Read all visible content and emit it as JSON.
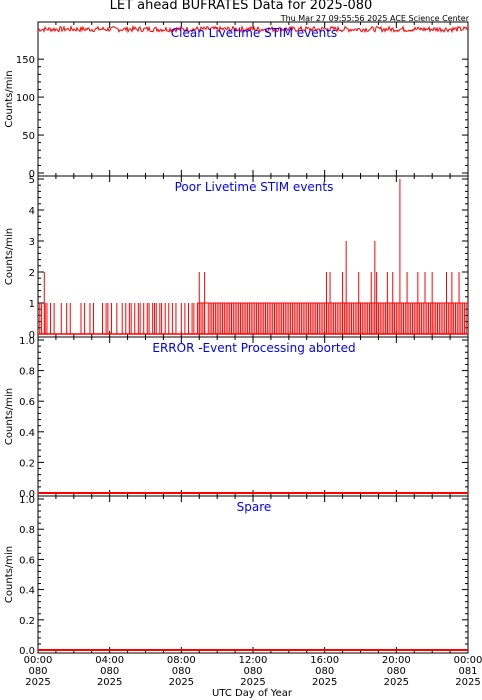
{
  "title": "LET ahead BUFRATES Data for 2025-080",
  "timestamp": "Thu Mar 27 09:55:56 2025 ACE Science Center",
  "xlabel": "UTC Day of Year",
  "colors": {
    "data": "#ff0000",
    "title": "#0000ff",
    "axis": "#000000"
  },
  "x_ticks": [
    {
      "time": "00:00",
      "doy": "080",
      "year": "2025"
    },
    {
      "time": "04:00",
      "doy": "080",
      "year": "2025"
    },
    {
      "time": "08:00",
      "doy": "080",
      "year": "2025"
    },
    {
      "time": "12:00",
      "doy": "080",
      "year": "2025"
    },
    {
      "time": "16:00",
      "doy": "080",
      "year": "2025"
    },
    {
      "time": "20:00",
      "doy": "080",
      "year": "2025"
    },
    {
      "time": "00:00",
      "doy": "081",
      "year": "2025"
    }
  ],
  "chart_data": [
    {
      "type": "line",
      "title": "Clean Livetime STIM events",
      "ylabel": "Counts/min",
      "ylim": [
        0,
        195
      ],
      "yticks": [
        0,
        50,
        100,
        150
      ],
      "ytick_labels": [
        "0",
        "50",
        "100",
        "150"
      ],
      "series": [
        {
          "x_hours": [
            0,
            24
          ],
          "values": [
            190,
            190
          ],
          "noise": [
            186,
            193
          ]
        }
      ]
    },
    {
      "type": "line",
      "title": "Poor Livetime STIM events",
      "ylabel": "Counts/min",
      "ylim": [
        0,
        5
      ],
      "yticks": [
        0,
        1,
        2,
        3,
        4,
        5
      ],
      "ytick_labels": [
        "0",
        "1",
        "2",
        "3",
        "4",
        "5"
      ],
      "series": [
        {
          "spikes_value_1_hours": [
            0.1,
            0.2,
            0.4,
            0.5,
            0.7,
            0.9,
            1.3,
            1.6,
            1.8,
            2.4,
            2.6,
            2.9,
            3.1,
            3.6,
            3.8,
            3.9,
            4.1,
            4.4,
            4.7,
            4.9,
            5.1,
            5.2,
            5.4,
            5.6,
            5.7,
            5.9,
            6.1,
            6.2,
            6.4,
            6.5,
            6.6,
            6.8,
            6.9,
            7.1,
            7.3,
            7.5,
            7.7,
            8.0,
            8.2,
            8.4,
            8.6,
            8.7,
            8.9,
            9.0,
            9.1,
            9.2,
            9.3,
            9.5,
            9.6,
            9.7,
            9.8,
            9.9,
            10.0,
            10.1,
            10.2,
            10.3,
            10.4,
            10.5,
            10.6,
            10.7,
            10.8,
            10.9,
            11.0,
            11.1,
            11.2,
            11.3,
            11.4,
            11.5,
            11.6,
            11.7,
            11.8,
            11.9,
            12.0,
            12.1,
            12.2,
            12.3,
            12.4,
            12.5,
            12.6,
            12.7,
            12.8,
            12.9,
            13.0,
            13.1,
            13.2,
            13.3,
            13.4,
            13.5,
            13.6,
            13.7,
            13.8,
            13.9,
            14.0,
            14.1,
            14.2,
            14.3,
            14.4,
            14.5,
            14.6,
            14.7,
            14.8,
            14.9,
            15.0,
            15.1,
            15.2,
            15.3,
            15.4,
            15.5,
            15.6,
            15.7,
            15.8,
            15.9,
            16.0,
            16.1,
            16.2,
            16.3,
            16.4,
            16.5,
            16.6,
            16.7,
            16.8,
            16.9,
            17.0,
            17.1,
            17.2,
            17.3,
            17.4,
            17.5,
            17.6,
            17.7,
            17.8,
            17.9,
            18.0,
            18.1,
            18.2,
            18.3,
            18.4,
            18.5,
            18.6,
            18.7,
            18.8,
            18.9,
            19.0,
            19.1,
            19.2,
            19.3,
            19.4,
            19.5,
            19.6,
            19.7,
            19.8,
            19.9,
            20.0,
            20.1,
            20.2,
            20.3,
            20.4,
            20.5,
            20.6,
            20.7,
            20.8,
            20.9,
            21.0,
            21.1,
            21.2,
            21.3,
            21.4,
            21.5,
            21.6,
            21.7,
            21.8,
            21.9,
            22.0,
            22.1,
            22.2,
            22.3,
            22.4,
            22.5,
            22.6,
            22.7,
            22.8,
            22.9,
            23.0,
            23.1,
            23.2,
            23.3,
            23.4,
            23.5,
            23.6,
            23.7,
            23.8,
            23.9
          ],
          "spikes_value_2_hours": [
            0.35,
            9.0,
            9.3,
            16.1,
            16.3,
            17.0,
            17.9,
            18.6,
            18.9,
            19.5,
            19.8,
            20.6,
            21.2,
            21.6,
            22.0,
            22.8,
            23.1,
            23.5
          ],
          "spikes_value_3_hours": [
            17.2,
            18.8
          ],
          "spikes_value_5_hours": [
            20.2
          ]
        }
      ]
    },
    {
      "type": "line",
      "title": "ERROR -Event Processing aborted",
      "ylabel": "Counts/min",
      "ylim": [
        0,
        1
      ],
      "yticks": [
        0,
        0.2,
        0.4,
        0.6,
        0.8,
        1.0
      ],
      "ytick_labels": [
        "0.0",
        "0.2",
        "0.4",
        "0.6",
        "0.8",
        "1.0"
      ],
      "series": [
        {
          "x_hours": [
            0,
            24
          ],
          "values": [
            0,
            0
          ]
        }
      ]
    },
    {
      "type": "line",
      "title": "Spare",
      "ylabel": "Counts/min",
      "ylim": [
        0,
        1
      ],
      "yticks": [
        0,
        0.2,
        0.4,
        0.6,
        0.8,
        1.0
      ],
      "ytick_labels": [
        "0.0",
        "0.2",
        "0.4",
        "0.6",
        "0.8",
        "1.0"
      ],
      "series": [
        {
          "x_hours": [
            0,
            24
          ],
          "values": [
            0,
            0
          ]
        }
      ]
    }
  ]
}
